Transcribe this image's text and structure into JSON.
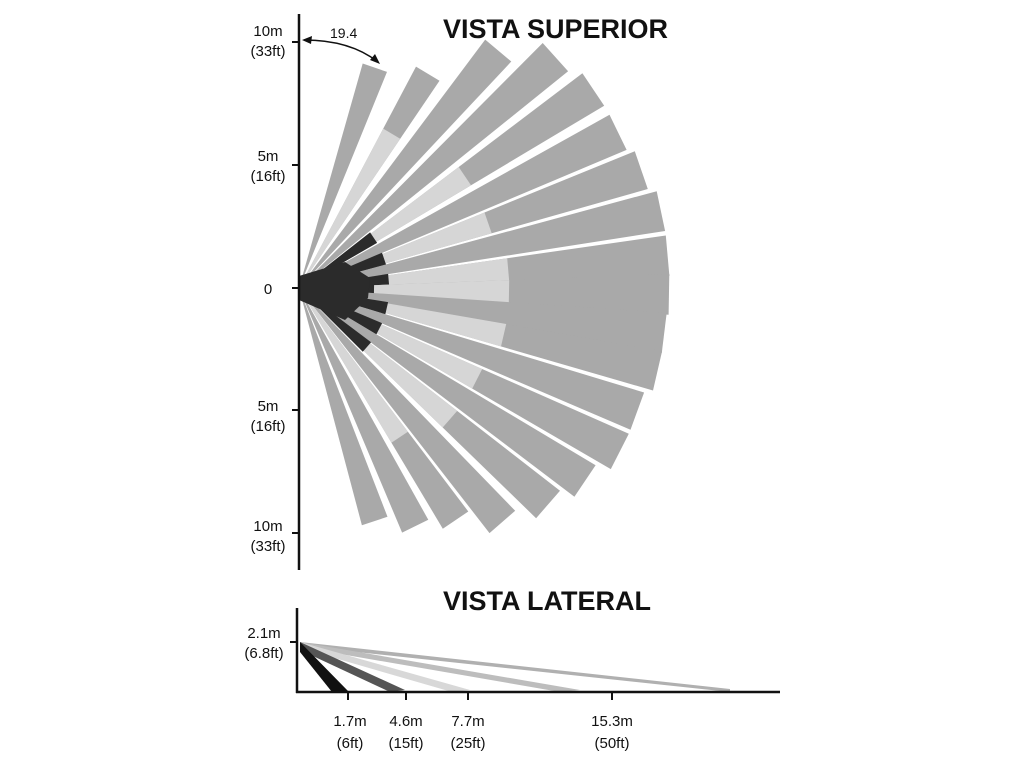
{
  "top_view": {
    "title": "VISTA SUPERIOR",
    "angle_annotation": "19.4",
    "y_labels": [
      {
        "m": "10m",
        "ft": "(33ft)"
      },
      {
        "m": "5m",
        "ft": "(16ft)"
      },
      {
        "m": "0",
        "ft": ""
      },
      {
        "m": "5m",
        "ft": "(16ft)"
      },
      {
        "m": "10m",
        "ft": "(33ft)"
      }
    ]
  },
  "side_view": {
    "title": "VISTA LATERAL",
    "height_label": {
      "m": "2.1m",
      "ft": "(6.8ft)"
    },
    "distance_labels": [
      {
        "m": "1.7m",
        "ft": "(6ft)"
      },
      {
        "m": "4.6m",
        "ft": "(15ft)"
      },
      {
        "m": "7.7m",
        "ft": "(25ft)"
      },
      {
        "m": "15.3m",
        "ft": "(50ft)"
      }
    ]
  },
  "colors": {
    "far_zone": "#a9a9a9",
    "mid_zone": "#d6d6d6",
    "near_zone": "#2b2b2b",
    "axis": "#111111"
  }
}
